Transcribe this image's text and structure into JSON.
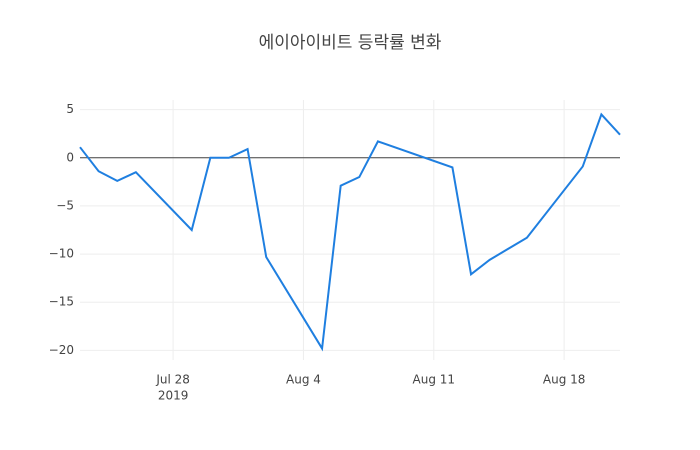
{
  "chart_data": {
    "type": "line",
    "title": "에이아이비트 등락률 변화",
    "x": [
      "2019-07-23",
      "2019-07-24",
      "2019-07-25",
      "2019-07-26",
      "2019-07-29",
      "2019-07-30",
      "2019-07-31",
      "2019-08-01",
      "2019-08-02",
      "2019-08-05",
      "2019-08-06",
      "2019-08-07",
      "2019-08-08",
      "2019-08-12",
      "2019-08-13",
      "2019-08-14",
      "2019-08-16",
      "2019-08-19",
      "2019-08-20",
      "2019-08-21"
    ],
    "series": [
      {
        "color": "#1f7fe0",
        "values": [
          1.1,
          -1.4,
          -2.4,
          -1.5,
          -7.5,
          0,
          0,
          0.9,
          -10.3,
          -19.8,
          -2.9,
          -2.0,
          1.7,
          -1.0,
          -12.1,
          -10.6,
          -8.3,
          -0.9,
          4.5,
          2.4
        ]
      }
    ],
    "xlim": [
      "2019-07-23",
      "2019-08-21"
    ],
    "xticks": [
      {
        "value": "2019-07-28",
        "label": "Jul 28"
      },
      {
        "value": "2019-08-04",
        "label": "Aug 4"
      },
      {
        "value": "2019-08-11",
        "label": "Aug 11"
      },
      {
        "value": "2019-08-18",
        "label": "Aug 18"
      }
    ],
    "xtick_year": "2019",
    "ylim": [
      -21,
      6
    ],
    "yticks": [
      {
        "value": -20,
        "label": "−20"
      },
      {
        "value": -15,
        "label": "−15"
      },
      {
        "value": -10,
        "label": "−10"
      },
      {
        "value": -5,
        "label": "−5"
      },
      0,
      5
    ],
    "grid": true,
    "zeroline": true
  }
}
